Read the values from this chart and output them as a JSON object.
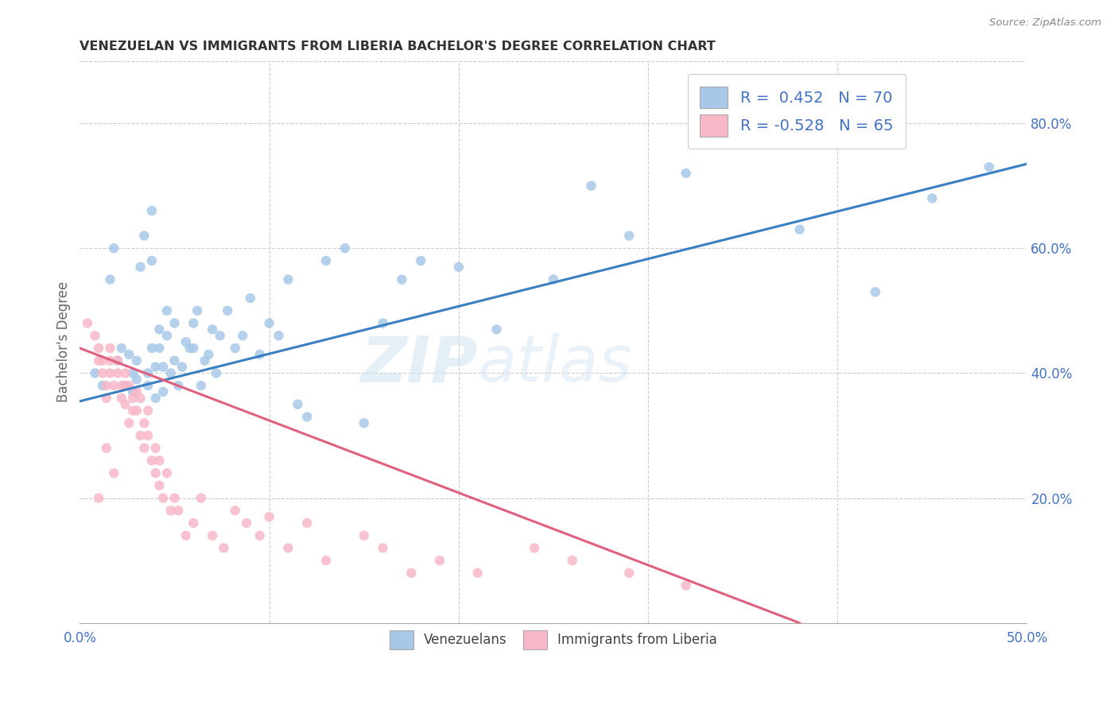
{
  "title": "VENEZUELAN VS IMMIGRANTS FROM LIBERIA BACHELOR'S DEGREE CORRELATION CHART",
  "source": "Source: ZipAtlas.com",
  "ylabel": "Bachelor's Degree",
  "right_yticks": [
    "80.0%",
    "60.0%",
    "40.0%",
    "20.0%"
  ],
  "right_ytick_vals": [
    0.8,
    0.6,
    0.4,
    0.2
  ],
  "legend_blue_R": "0.452",
  "legend_blue_N": "70",
  "legend_pink_R": "-0.528",
  "legend_pink_N": "65",
  "blue_color": "#a8c8e8",
  "pink_color": "#f8b8c8",
  "blue_line_color": "#3a7fc1",
  "pink_line_color": "#e06080",
  "watermark_zip": "ZIP",
  "watermark_atlas": "atlas",
  "blue_scatter_x": [
    0.008,
    0.012,
    0.016,
    0.018,
    0.02,
    0.022,
    0.024,
    0.026,
    0.028,
    0.028,
    0.03,
    0.03,
    0.032,
    0.034,
    0.036,
    0.036,
    0.038,
    0.038,
    0.038,
    0.04,
    0.04,
    0.042,
    0.042,
    0.044,
    0.044,
    0.046,
    0.046,
    0.048,
    0.05,
    0.05,
    0.052,
    0.054,
    0.056,
    0.058,
    0.06,
    0.06,
    0.062,
    0.064,
    0.066,
    0.068,
    0.07,
    0.072,
    0.074,
    0.078,
    0.082,
    0.086,
    0.09,
    0.095,
    0.1,
    0.105,
    0.11,
    0.115,
    0.12,
    0.13,
    0.14,
    0.15,
    0.16,
    0.17,
    0.18,
    0.2,
    0.22,
    0.25,
    0.27,
    0.29,
    0.32,
    0.35,
    0.38,
    0.42,
    0.45,
    0.48
  ],
  "blue_scatter_y": [
    0.4,
    0.38,
    0.55,
    0.6,
    0.42,
    0.44,
    0.38,
    0.43,
    0.4,
    0.37,
    0.39,
    0.42,
    0.57,
    0.62,
    0.38,
    0.4,
    0.44,
    0.58,
    0.66,
    0.36,
    0.41,
    0.44,
    0.47,
    0.37,
    0.41,
    0.46,
    0.5,
    0.4,
    0.42,
    0.48,
    0.38,
    0.41,
    0.45,
    0.44,
    0.48,
    0.44,
    0.5,
    0.38,
    0.42,
    0.43,
    0.47,
    0.4,
    0.46,
    0.5,
    0.44,
    0.46,
    0.52,
    0.43,
    0.48,
    0.46,
    0.55,
    0.35,
    0.33,
    0.58,
    0.6,
    0.32,
    0.48,
    0.55,
    0.58,
    0.57,
    0.47,
    0.55,
    0.7,
    0.62,
    0.72,
    0.78,
    0.63,
    0.53,
    0.68,
    0.73
  ],
  "pink_scatter_x": [
    0.004,
    0.008,
    0.01,
    0.01,
    0.01,
    0.012,
    0.012,
    0.014,
    0.014,
    0.014,
    0.016,
    0.016,
    0.016,
    0.018,
    0.018,
    0.02,
    0.02,
    0.022,
    0.022,
    0.024,
    0.024,
    0.024,
    0.026,
    0.026,
    0.028,
    0.028,
    0.03,
    0.03,
    0.032,
    0.032,
    0.034,
    0.034,
    0.036,
    0.036,
    0.038,
    0.04,
    0.04,
    0.042,
    0.042,
    0.044,
    0.046,
    0.048,
    0.05,
    0.052,
    0.056,
    0.06,
    0.064,
    0.07,
    0.076,
    0.082,
    0.088,
    0.095,
    0.1,
    0.11,
    0.12,
    0.13,
    0.15,
    0.16,
    0.175,
    0.19,
    0.21,
    0.24,
    0.26,
    0.29,
    0.32
  ],
  "pink_scatter_y": [
    0.48,
    0.46,
    0.44,
    0.42,
    0.2,
    0.42,
    0.4,
    0.38,
    0.36,
    0.28,
    0.44,
    0.42,
    0.4,
    0.38,
    0.24,
    0.42,
    0.4,
    0.38,
    0.36,
    0.4,
    0.38,
    0.35,
    0.32,
    0.38,
    0.36,
    0.34,
    0.37,
    0.34,
    0.3,
    0.36,
    0.32,
    0.28,
    0.34,
    0.3,
    0.26,
    0.28,
    0.24,
    0.26,
    0.22,
    0.2,
    0.24,
    0.18,
    0.2,
    0.18,
    0.14,
    0.16,
    0.2,
    0.14,
    0.12,
    0.18,
    0.16,
    0.14,
    0.17,
    0.12,
    0.16,
    0.1,
    0.14,
    0.12,
    0.08,
    0.1,
    0.08,
    0.12,
    0.1,
    0.08,
    0.06
  ],
  "xmin": 0.0,
  "xmax": 0.5,
  "ymin": 0.0,
  "ymax": 0.9,
  "blue_line_x": [
    0.0,
    0.5
  ],
  "blue_line_y": [
    0.355,
    0.735
  ],
  "pink_line_x": [
    0.0,
    0.38
  ],
  "pink_line_y": [
    0.44,
    0.0
  ],
  "xtick_positions": [
    0.0,
    0.1,
    0.2,
    0.3,
    0.4,
    0.5
  ],
  "xtick_labels_show": [
    "0.0%",
    "",
    "",
    "",
    "",
    "50.0%"
  ]
}
